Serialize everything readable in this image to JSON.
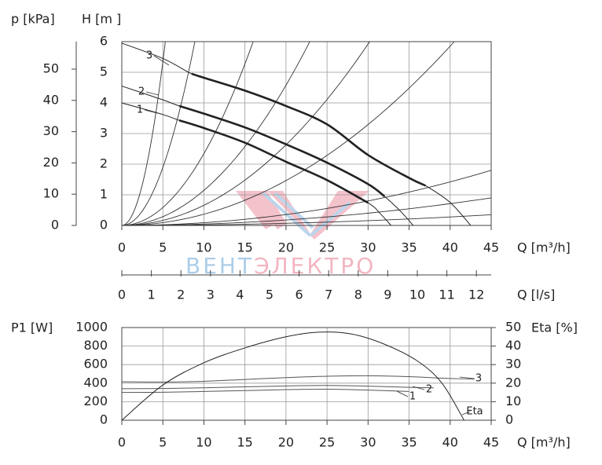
{
  "chart_data": [
    {
      "type": "line",
      "x_label": "Q [m³/h]",
      "y_label": "H [m ]",
      "y2_label": "p [kPa]",
      "xlim": [
        0,
        45
      ],
      "xticks": [
        0,
        5,
        10,
        15,
        20,
        25,
        30,
        35,
        40,
        45
      ],
      "ylim": [
        0,
        6
      ],
      "yticks": [
        0,
        1,
        2,
        3,
        4,
        5,
        6
      ],
      "y2lim": [
        0,
        58.8
      ],
      "y2ticks": [
        0,
        10,
        20,
        30,
        40,
        50
      ],
      "grid": true,
      "series": [
        {
          "name": "1",
          "color": "#222222",
          "bold_from": 7,
          "bold_to": 30,
          "x": [
            0,
            5,
            7,
            10,
            15,
            20,
            25,
            30,
            31.5,
            32.8
          ],
          "values": [
            4.0,
            3.62,
            3.43,
            3.18,
            2.7,
            2.08,
            1.48,
            0.74,
            0.38,
            0
          ]
        },
        {
          "name": "2",
          "color": "#222222",
          "bold_from": 7,
          "bold_to": 32,
          "x": [
            0,
            5,
            7,
            10,
            15,
            20,
            25,
            30,
            32,
            34,
            35.5
          ],
          "values": [
            4.55,
            4.1,
            3.9,
            3.65,
            3.2,
            2.65,
            2.05,
            1.35,
            0.95,
            0.45,
            0
          ]
        },
        {
          "name": "3",
          "color": "#222222",
          "bold_from": 8.5,
          "bold_to": 37,
          "x": [
            0,
            5,
            8.5,
            10,
            15,
            20,
            25,
            30,
            35,
            37,
            40,
            42.5
          ],
          "values": [
            5.95,
            5.45,
            4.95,
            4.82,
            4.4,
            3.9,
            3.3,
            2.3,
            1.55,
            1.3,
            0.75,
            0
          ]
        }
      ],
      "system_curves": [
        {
          "q": 5.3,
          "h": 6
        },
        {
          "q": 8.9,
          "h": 6
        },
        {
          "q": 16,
          "h": 6
        },
        {
          "q": 22.9,
          "h": 6
        },
        {
          "q": 30.2,
          "h": 6
        },
        {
          "q": 40.5,
          "h": 6
        },
        {
          "q": 45,
          "h": 1.8
        },
        {
          "q": 45,
          "h": 0.9
        },
        {
          "q": 45,
          "h": 0.35
        }
      ],
      "watermark": [
        "ВЕНТ",
        "ЭЛЕКТРО"
      ]
    },
    {
      "type": "axis",
      "x_label": "Q [l/s]",
      "xlim": [
        0,
        12.5
      ],
      "xticks": [
        0,
        1,
        2,
        3,
        4,
        5,
        6,
        7,
        8,
        9,
        10,
        11,
        12
      ]
    },
    {
      "type": "line",
      "x_label": "Q [m³/h]",
      "y_label": "P1 [W]",
      "y2_label": "Eta [%]",
      "xlim": [
        0,
        45
      ],
      "xticks": [
        0,
        5,
        10,
        15,
        20,
        25,
        30,
        35,
        40,
        45
      ],
      "ylim": [
        0,
        1000
      ],
      "yticks": [
        0,
        200,
        400,
        600,
        800,
        1000
      ],
      "y2lim": [
        0,
        50
      ],
      "y2ticks": [
        0,
        10,
        20,
        30,
        40,
        50
      ],
      "grid": true,
      "series": [
        {
          "name": "1",
          "color": "#555555",
          "x": [
            0,
            5,
            10,
            15,
            20,
            25,
            30,
            35
          ],
          "values": [
            300,
            302,
            310,
            320,
            330,
            335,
            325,
            310
          ]
        },
        {
          "name": "2",
          "color": "#555555",
          "x": [
            0,
            5,
            10,
            15,
            20,
            25,
            30,
            35,
            38
          ],
          "values": [
            340,
            342,
            350,
            360,
            370,
            375,
            368,
            355,
            350
          ]
        },
        {
          "name": "3",
          "color": "#555555",
          "x": [
            0,
            5,
            10,
            15,
            20,
            25,
            30,
            35,
            40,
            43
          ],
          "values": [
            415,
            412,
            420,
            440,
            460,
            475,
            480,
            470,
            450,
            445
          ]
        },
        {
          "name": "Eta",
          "color": "#222222",
          "axis": "y2",
          "x": [
            0,
            5,
            10,
            15,
            20,
            24,
            28,
            32,
            36,
            39,
            41.7
          ],
          "values": [
            0,
            19,
            31,
            39,
            45,
            47.5,
            46.5,
            41,
            32,
            20,
            0
          ]
        }
      ]
    }
  ]
}
